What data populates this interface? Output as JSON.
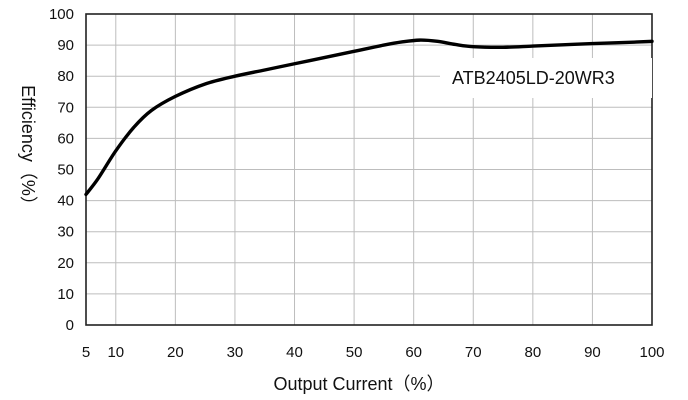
{
  "chart_data": {
    "type": "line",
    "title": "",
    "xlabel": "Output Current（%）",
    "ylabel": "Efficiency（%）",
    "xlim": [
      5,
      100
    ],
    "ylim": [
      0,
      100
    ],
    "x_ticks": [
      5,
      10,
      20,
      30,
      40,
      50,
      60,
      70,
      80,
      90,
      100
    ],
    "y_ticks": [
      0,
      10,
      20,
      30,
      40,
      50,
      60,
      70,
      80,
      90,
      100
    ],
    "grid": true,
    "legend_position": "top-right",
    "series": [
      {
        "name": "ATB2405LD-20WR3",
        "color": "#000000",
        "x": [
          5,
          7,
          10,
          13,
          16,
          20,
          25,
          30,
          35,
          40,
          45,
          50,
          55,
          58,
          61,
          64,
          67,
          70,
          75,
          80,
          85,
          90,
          95,
          100
        ],
        "y": [
          42,
          47,
          56,
          63.5,
          69,
          73.5,
          77.5,
          80,
          82,
          84,
          86,
          88,
          90,
          91,
          91.6,
          91.2,
          90.2,
          89.5,
          89.3,
          89.7,
          90.1,
          90.5,
          90.8,
          91.2
        ]
      }
    ]
  }
}
